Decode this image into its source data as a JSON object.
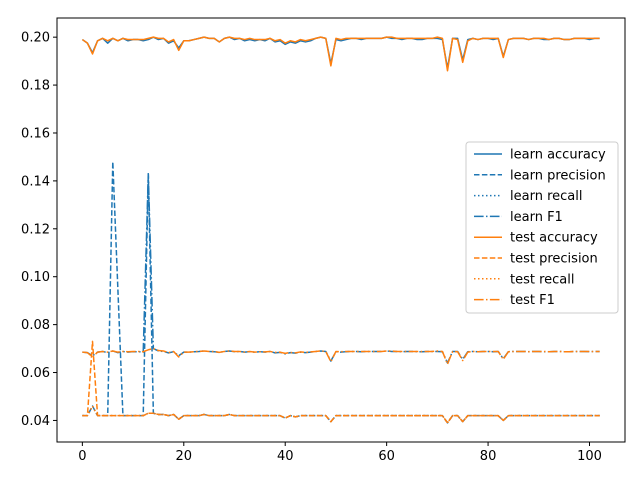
{
  "chart_data": {
    "type": "line",
    "title": "",
    "xlabel": "",
    "ylabel": "",
    "xlim": [
      -5,
      107
    ],
    "ylim": [
      0.031,
      0.208
    ],
    "xticks": [
      0,
      20,
      40,
      60,
      80,
      100
    ],
    "xtick_labels": [
      "0",
      "20",
      "40",
      "60",
      "80",
      "100"
    ],
    "yticks": [
      0.04,
      0.06,
      0.08,
      0.1,
      0.12,
      0.14,
      0.16,
      0.18,
      0.2
    ],
    "ytick_labels": [
      "0.04",
      "0.06",
      "0.08",
      "0.10",
      "0.12",
      "0.14",
      "0.16",
      "0.18",
      "0.20"
    ],
    "grid": false,
    "legend_position": "center-right",
    "colors": {
      "learn": "#1f77b4",
      "test": "#ff7f0e"
    },
    "x": [
      0,
      1,
      2,
      3,
      4,
      5,
      6,
      7,
      8,
      9,
      10,
      11,
      12,
      13,
      14,
      15,
      16,
      17,
      18,
      19,
      20,
      21,
      22,
      23,
      24,
      25,
      26,
      27,
      28,
      29,
      30,
      31,
      32,
      33,
      34,
      35,
      36,
      37,
      38,
      39,
      40,
      41,
      42,
      43,
      44,
      45,
      46,
      47,
      48,
      49,
      50,
      51,
      52,
      53,
      54,
      55,
      56,
      57,
      58,
      59,
      60,
      61,
      62,
      63,
      64,
      65,
      66,
      67,
      68,
      69,
      70,
      71,
      72,
      73,
      74,
      75,
      76,
      77,
      78,
      79,
      80,
      81,
      82,
      83,
      84,
      85,
      86,
      87,
      88,
      89,
      90,
      91,
      92,
      93,
      94,
      95,
      96,
      97,
      98,
      99,
      100,
      101,
      102
    ],
    "series": [
      {
        "name": "learn accuracy",
        "color": "#1f77b4",
        "style": "solid",
        "values": [
          0.199,
          0.1975,
          0.1935,
          0.1985,
          0.1995,
          0.1975,
          0.1995,
          0.1985,
          0.1995,
          0.1985,
          0.199,
          0.199,
          0.1985,
          0.199,
          0.2,
          0.199,
          0.1995,
          0.1975,
          0.1985,
          0.1955,
          0.1985,
          0.1985,
          0.199,
          0.1995,
          0.2,
          0.1995,
          0.1995,
          0.198,
          0.1995,
          0.2,
          0.199,
          0.1995,
          0.1985,
          0.199,
          0.1985,
          0.199,
          0.1985,
          0.1995,
          0.198,
          0.1985,
          0.197,
          0.198,
          0.1975,
          0.1985,
          0.198,
          0.1985,
          0.1995,
          0.2,
          0.1995,
          0.189,
          0.199,
          0.1985,
          0.199,
          0.1995,
          0.1995,
          0.199,
          0.1995,
          0.1995,
          0.1995,
          0.1995,
          0.2,
          0.1995,
          0.1995,
          0.199,
          0.1995,
          0.1995,
          0.199,
          0.199,
          0.1995,
          0.1995,
          0.1995,
          0.199,
          0.187,
          0.1995,
          0.1995,
          0.1905,
          0.199,
          0.1995,
          0.199,
          0.1995,
          0.1995,
          0.199,
          0.1995,
          0.192,
          0.199,
          0.1995,
          0.1995,
          0.1995,
          0.199,
          0.1995,
          0.1995,
          0.199,
          0.199,
          0.1995,
          0.1995,
          0.199,
          0.199,
          0.1995,
          0.1995,
          0.1995,
          0.199,
          0.1995,
          0.1995
        ]
      },
      {
        "name": "learn precision",
        "color": "#1f77b4",
        "style": "dashed",
        "values": [
          0.042,
          0.042,
          0.046,
          0.042,
          0.042,
          0.042,
          0.148,
          0.095,
          0.042,
          0.042,
          0.042,
          0.042,
          0.042,
          0.143,
          0.043,
          0.0425,
          0.0425,
          0.042,
          0.0425,
          0.0405,
          0.042,
          0.042,
          0.042,
          0.042,
          0.0425,
          0.042,
          0.042,
          0.042,
          0.042,
          0.0425,
          0.042,
          0.042,
          0.042,
          0.042,
          0.042,
          0.042,
          0.042,
          0.042,
          0.042,
          0.042,
          0.041,
          0.042,
          0.0415,
          0.042,
          0.042,
          0.042,
          0.042,
          0.042,
          0.042,
          0.0395,
          0.042,
          0.042,
          0.042,
          0.042,
          0.042,
          0.042,
          0.042,
          0.042,
          0.042,
          0.042,
          0.042,
          0.042,
          0.042,
          0.042,
          0.042,
          0.042,
          0.042,
          0.042,
          0.042,
          0.042,
          0.042,
          0.042,
          0.039,
          0.042,
          0.042,
          0.0395,
          0.042,
          0.042,
          0.042,
          0.042,
          0.042,
          0.042,
          0.042,
          0.04,
          0.042,
          0.042,
          0.042,
          0.042,
          0.042,
          0.042,
          0.042,
          0.042,
          0.042,
          0.042,
          0.042,
          0.042,
          0.042,
          0.042,
          0.042,
          0.042,
          0.042,
          0.042,
          0.042
        ]
      },
      {
        "name": "learn recall",
        "color": "#1f77b4",
        "style": "dotted",
        "values": [
          0.042,
          0.042,
          0.046,
          0.042,
          0.042,
          0.042,
          0.042,
          0.042,
          0.042,
          0.042,
          0.042,
          0.042,
          0.042,
          0.043,
          0.043,
          0.0425,
          0.0425,
          0.042,
          0.0425,
          0.0405,
          0.042,
          0.042,
          0.042,
          0.042,
          0.0425,
          0.042,
          0.042,
          0.042,
          0.042,
          0.0425,
          0.042,
          0.042,
          0.042,
          0.042,
          0.042,
          0.042,
          0.042,
          0.042,
          0.042,
          0.042,
          0.041,
          0.042,
          0.0415,
          0.042,
          0.042,
          0.042,
          0.042,
          0.042,
          0.042,
          0.0395,
          0.042,
          0.042,
          0.042,
          0.042,
          0.042,
          0.042,
          0.042,
          0.042,
          0.042,
          0.042,
          0.042,
          0.042,
          0.042,
          0.042,
          0.042,
          0.042,
          0.042,
          0.042,
          0.042,
          0.042,
          0.042,
          0.042,
          0.039,
          0.042,
          0.042,
          0.0395,
          0.042,
          0.042,
          0.042,
          0.042,
          0.042,
          0.042,
          0.042,
          0.04,
          0.042,
          0.042,
          0.042,
          0.042,
          0.042,
          0.042,
          0.042,
          0.042,
          0.042,
          0.042,
          0.042,
          0.042,
          0.042,
          0.042,
          0.042,
          0.042,
          0.042,
          0.042,
          0.042
        ]
      },
      {
        "name": "learn F1",
        "color": "#1f77b4",
        "style": "dashdot",
        "values": [
          0.0685,
          0.0683,
          0.067,
          0.0685,
          0.0688,
          0.0683,
          0.069,
          0.0683,
          0.0688,
          0.0685,
          0.0687,
          0.0687,
          0.0685,
          0.143,
          0.07,
          0.069,
          0.0688,
          0.0682,
          0.0687,
          0.067,
          0.0685,
          0.0685,
          0.0687,
          0.0688,
          0.069,
          0.0688,
          0.0687,
          0.0684,
          0.0688,
          0.069,
          0.0687,
          0.0688,
          0.0685,
          0.0687,
          0.0685,
          0.0687,
          0.0685,
          0.0688,
          0.0682,
          0.0684,
          0.0678,
          0.0683,
          0.0681,
          0.0685,
          0.0683,
          0.0685,
          0.0688,
          0.069,
          0.0688,
          0.0648,
          0.0687,
          0.0685,
          0.0687,
          0.0688,
          0.0688,
          0.0687,
          0.0688,
          0.0688,
          0.0688,
          0.0688,
          0.069,
          0.0688,
          0.0688,
          0.0687,
          0.0688,
          0.0688,
          0.0687,
          0.0687,
          0.0688,
          0.0688,
          0.0688,
          0.0687,
          0.064,
          0.0688,
          0.0688,
          0.0655,
          0.0687,
          0.0688,
          0.0687,
          0.0688,
          0.0688,
          0.0687,
          0.0688,
          0.0658,
          0.0687,
          0.0688,
          0.0688,
          0.0688,
          0.0687,
          0.0688,
          0.0688,
          0.0687,
          0.0687,
          0.0688,
          0.0688,
          0.0687,
          0.0687,
          0.0688,
          0.0688,
          0.0688,
          0.0687,
          0.0688,
          0.0688
        ]
      },
      {
        "name": "test accuracy",
        "color": "#ff7f0e",
        "style": "solid",
        "values": [
          0.199,
          0.1975,
          0.193,
          0.1985,
          0.1995,
          0.1985,
          0.1995,
          0.1985,
          0.1995,
          0.199,
          0.199,
          0.199,
          0.199,
          0.1995,
          0.2,
          0.1995,
          0.1995,
          0.198,
          0.199,
          0.1945,
          0.1985,
          0.1985,
          0.199,
          0.1995,
          0.2,
          0.1995,
          0.1995,
          0.198,
          0.1995,
          0.2,
          0.1995,
          0.1995,
          0.199,
          0.1995,
          0.199,
          0.199,
          0.199,
          0.1995,
          0.1985,
          0.199,
          0.1975,
          0.1985,
          0.198,
          0.199,
          0.1985,
          0.199,
          0.1995,
          0.2,
          0.1995,
          0.188,
          0.1995,
          0.199,
          0.1995,
          0.1995,
          0.1995,
          0.1995,
          0.1995,
          0.1995,
          0.1995,
          0.1995,
          0.2,
          0.2,
          0.1995,
          0.1995,
          0.1995,
          0.1995,
          0.1995,
          0.1995,
          0.1995,
          0.1995,
          0.2,
          0.1995,
          0.186,
          0.1995,
          0.199,
          0.1895,
          0.1985,
          0.1995,
          0.199,
          0.1995,
          0.1995,
          0.1995,
          0.1995,
          0.1915,
          0.199,
          0.1995,
          0.1995,
          0.1995,
          0.199,
          0.1995,
          0.1995,
          0.1995,
          0.199,
          0.1995,
          0.1995,
          0.199,
          0.199,
          0.1995,
          0.1995,
          0.1995,
          0.1995,
          0.1995,
          0.1995
        ]
      },
      {
        "name": "test precision",
        "color": "#ff7f0e",
        "style": "dashed",
        "values": [
          0.042,
          0.042,
          0.073,
          0.042,
          0.042,
          0.042,
          0.042,
          0.042,
          0.042,
          0.042,
          0.042,
          0.042,
          0.042,
          0.043,
          0.043,
          0.0425,
          0.0425,
          0.042,
          0.0425,
          0.0405,
          0.042,
          0.042,
          0.042,
          0.042,
          0.0425,
          0.042,
          0.042,
          0.042,
          0.042,
          0.0425,
          0.042,
          0.042,
          0.042,
          0.042,
          0.042,
          0.042,
          0.042,
          0.042,
          0.042,
          0.042,
          0.041,
          0.042,
          0.0415,
          0.042,
          0.042,
          0.042,
          0.042,
          0.042,
          0.042,
          0.0395,
          0.042,
          0.042,
          0.042,
          0.042,
          0.042,
          0.042,
          0.042,
          0.042,
          0.042,
          0.042,
          0.042,
          0.042,
          0.042,
          0.042,
          0.042,
          0.042,
          0.042,
          0.042,
          0.042,
          0.042,
          0.042,
          0.042,
          0.039,
          0.042,
          0.042,
          0.0395,
          0.042,
          0.042,
          0.042,
          0.042,
          0.042,
          0.042,
          0.042,
          0.04,
          0.042,
          0.042,
          0.042,
          0.042,
          0.042,
          0.042,
          0.042,
          0.042,
          0.042,
          0.042,
          0.042,
          0.042,
          0.042,
          0.042,
          0.042,
          0.042,
          0.042,
          0.042,
          0.042
        ]
      },
      {
        "name": "test recall",
        "color": "#ff7f0e",
        "style": "dotted",
        "values": [
          0.042,
          0.042,
          0.046,
          0.042,
          0.042,
          0.042,
          0.042,
          0.042,
          0.042,
          0.042,
          0.042,
          0.042,
          0.042,
          0.043,
          0.043,
          0.0425,
          0.0425,
          0.042,
          0.0425,
          0.0405,
          0.042,
          0.042,
          0.042,
          0.042,
          0.0425,
          0.042,
          0.042,
          0.042,
          0.042,
          0.0425,
          0.042,
          0.042,
          0.042,
          0.042,
          0.042,
          0.042,
          0.042,
          0.042,
          0.042,
          0.042,
          0.041,
          0.042,
          0.0415,
          0.042,
          0.042,
          0.042,
          0.042,
          0.042,
          0.042,
          0.0395,
          0.042,
          0.042,
          0.042,
          0.042,
          0.042,
          0.042,
          0.042,
          0.042,
          0.042,
          0.042,
          0.042,
          0.042,
          0.042,
          0.042,
          0.042,
          0.042,
          0.042,
          0.042,
          0.042,
          0.042,
          0.042,
          0.042,
          0.039,
          0.042,
          0.042,
          0.0395,
          0.042,
          0.042,
          0.042,
          0.042,
          0.042,
          0.042,
          0.042,
          0.04,
          0.042,
          0.042,
          0.042,
          0.042,
          0.042,
          0.042,
          0.042,
          0.042,
          0.042,
          0.042,
          0.042,
          0.042,
          0.042,
          0.042,
          0.042,
          0.042,
          0.042,
          0.042,
          0.042
        ]
      },
      {
        "name": "test F1",
        "color": "#ff7f0e",
        "style": "dashdot",
        "values": [
          0.0685,
          0.0683,
          0.0665,
          0.0685,
          0.0688,
          0.0685,
          0.069,
          0.0685,
          0.0688,
          0.0687,
          0.0688,
          0.0688,
          0.0687,
          0.0695,
          0.07,
          0.0692,
          0.069,
          0.0683,
          0.0688,
          0.0665,
          0.0685,
          0.0685,
          0.0687,
          0.0688,
          0.069,
          0.0688,
          0.0688,
          0.0684,
          0.0688,
          0.069,
          0.0688,
          0.0688,
          0.0685,
          0.0688,
          0.0685,
          0.0687,
          0.0686,
          0.0688,
          0.0684,
          0.0685,
          0.068,
          0.0684,
          0.0682,
          0.0686,
          0.0684,
          0.0686,
          0.0688,
          0.069,
          0.0688,
          0.0645,
          0.0688,
          0.0687,
          0.0688,
          0.0688,
          0.0688,
          0.0688,
          0.0688,
          0.0688,
          0.0688,
          0.0688,
          0.069,
          0.069,
          0.0688,
          0.0688,
          0.0688,
          0.0688,
          0.0688,
          0.0688,
          0.0688,
          0.0688,
          0.069,
          0.0688,
          0.0635,
          0.0688,
          0.0687,
          0.065,
          0.0685,
          0.0688,
          0.0687,
          0.0688,
          0.0688,
          0.0688,
          0.0688,
          0.0655,
          0.0687,
          0.0688,
          0.0688,
          0.0688,
          0.0687,
          0.0688,
          0.0688,
          0.0688,
          0.0687,
          0.0688,
          0.0688,
          0.0687,
          0.0687,
          0.0688,
          0.0688,
          0.0688,
          0.0688,
          0.0688,
          0.0688
        ]
      }
    ]
  }
}
